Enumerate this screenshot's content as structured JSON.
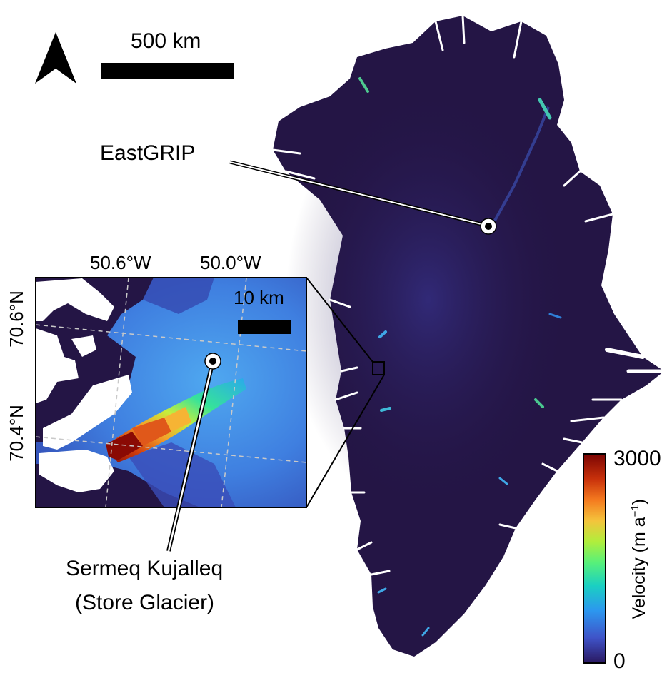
{
  "scale_bar": {
    "label": "500 km"
  },
  "sites": {
    "eastgrip": {
      "label": "EastGRIP"
    },
    "glacier": {
      "label_line1": "Sermeq Kujalleq",
      "label_line2": "(Store Glacier)"
    }
  },
  "inset": {
    "lon_labels": [
      "50.6°W",
      "50.0°W"
    ],
    "lat_labels": [
      "70.6°N",
      "70.4°N"
    ],
    "scale_bar_label": "10 km"
  },
  "colorbar": {
    "title": "Velocity (m a",
    "title_sup": "−1",
    "title_end": ")",
    "max_label": "3000",
    "min_label": "0",
    "range": [
      0,
      3000
    ],
    "colors": [
      "#2a1860",
      "#3f53c8",
      "#2c97ef",
      "#1ad0c2",
      "#57f07a",
      "#b0ee3c",
      "#f4c43c",
      "#f47a1f",
      "#c8310b",
      "#7a0403"
    ]
  },
  "colors": {
    "ice": "#241545",
    "ocean": "#ffffff"
  }
}
